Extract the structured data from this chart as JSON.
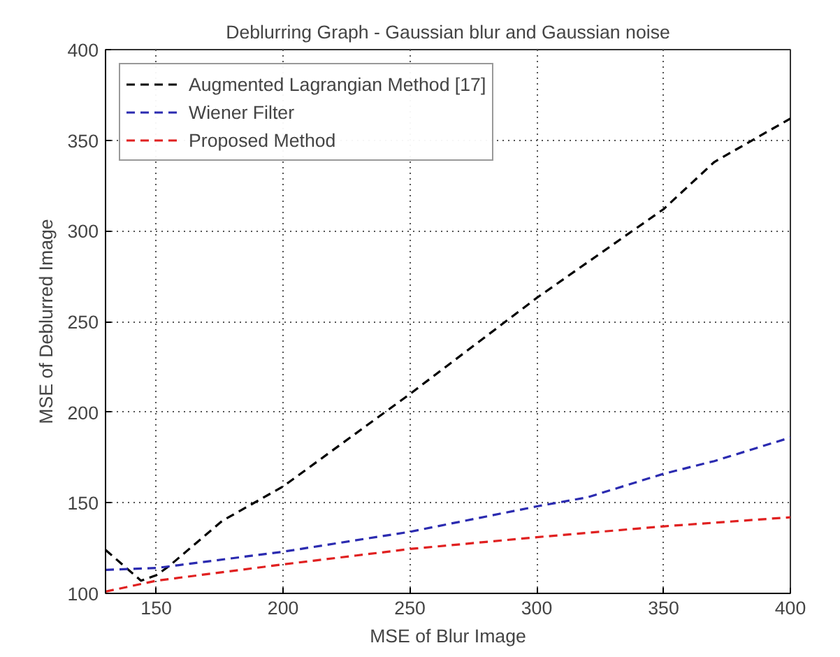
{
  "chart_data": {
    "type": "line",
    "title": "Deblurring Graph - Gaussian blur and Gaussian noise",
    "xlabel": "MSE of Blur Image",
    "ylabel": "MSE of Deblurred Image",
    "xlim": [
      130,
      400
    ],
    "ylim": [
      100,
      400
    ],
    "xticks": [
      150,
      200,
      250,
      300,
      350,
      400
    ],
    "yticks": [
      100,
      150,
      200,
      250,
      300,
      350,
      400
    ],
    "grid": true,
    "legend": "top left",
    "line_style": "dashed",
    "marker": "none",
    "series": [
      {
        "name": "Augmented Lagrangian Method [17]",
        "color": "#000000",
        "x": [
          130,
          144,
          150,
          155,
          176,
          200,
          250,
          300,
          350,
          370,
          400
        ],
        "values": [
          124,
          107,
          110,
          115,
          140,
          159,
          210,
          263,
          312,
          338,
          362
        ]
      },
      {
        "name": "Wiener Filter",
        "color": "#2b2bb0",
        "x": [
          130,
          150,
          200,
          250,
          300,
          320,
          350,
          370,
          400
        ],
        "values": [
          113,
          114,
          123,
          134,
          148,
          153,
          166,
          173,
          186
        ]
      },
      {
        "name": "Proposed Method",
        "color": "#e02020",
        "x": [
          130,
          150,
          200,
          250,
          300,
          350,
          400
        ],
        "values": [
          101,
          107,
          116,
          124.5,
          131,
          137,
          142
        ]
      }
    ]
  }
}
